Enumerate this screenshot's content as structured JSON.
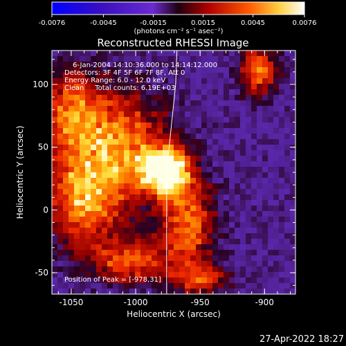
{
  "chart_data": {
    "type": "heatmap",
    "title": "Reconstructed RHESSI Image",
    "xlabel": "Heliocentric X (arcsec)",
    "ylabel": "Heliocentric Y (arcsec)",
    "x_ticks": [
      "-1050",
      "-1000",
      "-950",
      "-900"
    ],
    "y_ticks": [
      "-50",
      "0",
      "50",
      "100"
    ],
    "xlim": [
      -1065,
      -876
    ],
    "ylim": [
      -67,
      127
    ],
    "x_tick_values": [
      -1050,
      -1000,
      -950,
      -900
    ],
    "y_tick_values": [
      -50,
      0,
      50,
      100
    ],
    "colorbar": {
      "min": -0.0076,
      "max": 0.0076,
      "ticks": [
        "-0.0076",
        "-0.0045",
        "-0.0015",
        "0.0015",
        "0.0045",
        "0.0076"
      ],
      "unit_label": "(photons cm⁻² s⁻¹ asec⁻²)",
      "colormap": [
        "#0000ff",
        "#4a00a0",
        "#6a2bd0",
        "#200010",
        "#b00000",
        "#ff5a00",
        "#ffd040",
        "#ffffff"
      ]
    },
    "annotations": [
      "6-Jan-2004 14:10:36.000 to 14:14:12.000",
      "Detectors: 3F 4F 5F 6F 7F 8F, Att 0",
      "Energy Range: 6.0 - 12.0 keV",
      "Clean     Total counts: 6.19E+03"
    ],
    "peak_label": "Position of Peak = [-978,31]",
    "peak": {
      "x": -978,
      "y": 31
    },
    "sources": [
      {
        "x": -978,
        "y": 31,
        "amp": 1.0,
        "sx": 12,
        "sy": 12
      },
      {
        "x": -1020,
        "y": 50,
        "amp": 0.55,
        "sx": 28,
        "sy": 30
      },
      {
        "x": -1040,
        "y": 5,
        "amp": 0.45,
        "sx": 18,
        "sy": 22
      },
      {
        "x": -960,
        "y": -10,
        "amp": 0.45,
        "sx": 14,
        "sy": 25
      },
      {
        "x": -1005,
        "y": -40,
        "amp": 0.4,
        "sx": 22,
        "sy": 12
      },
      {
        "x": -905,
        "y": 110,
        "amp": 0.45,
        "sx": 10,
        "sy": 12
      },
      {
        "x": -950,
        "y": -55,
        "amp": 0.35,
        "sx": 14,
        "sy": 8
      },
      {
        "x": -1050,
        "y": 80,
        "amp": 0.35,
        "sx": 12,
        "sy": 20
      }
    ],
    "limb_curve": [
      {
        "x": -968,
        "y": 127
      },
      {
        "x": -969,
        "y": 100
      },
      {
        "x": -971,
        "y": 80
      },
      {
        "x": -973,
        "y": 60
      },
      {
        "x": -975,
        "y": 40
      },
      {
        "x": -976,
        "y": 20
      },
      {
        "x": -976,
        "y": 0
      },
      {
        "x": -976,
        "y": -20
      },
      {
        "x": -976,
        "y": -45
      },
      {
        "x": -976,
        "y": -67
      }
    ]
  },
  "footer": {
    "timestamp": "27-Apr-2022 18:27"
  }
}
